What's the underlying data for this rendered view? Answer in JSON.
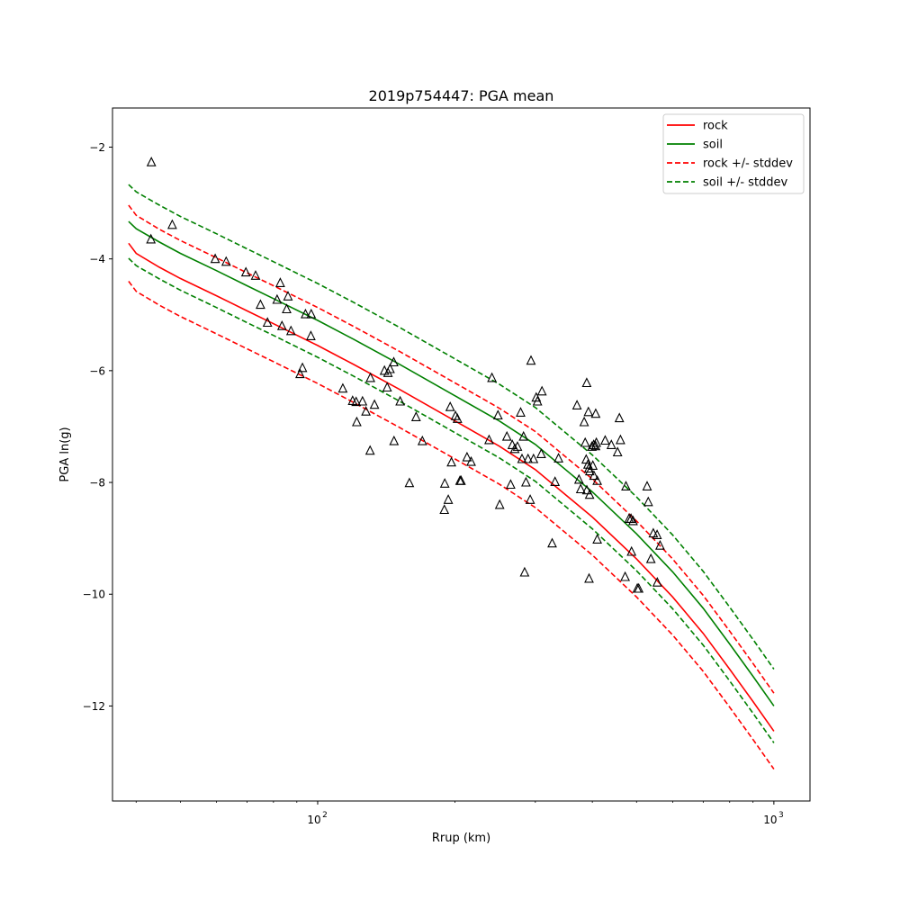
{
  "chart_data": {
    "type": "line",
    "title": "2019p754447: PGA mean",
    "xlabel": "Rrup (km)",
    "ylabel": "PGA ln(g)",
    "xscale": "log",
    "xlim": [
      35.5,
      1200
    ],
    "ylim": [
      -13.7,
      -1.3
    ],
    "x_ticks": [
      100,
      1000
    ],
    "x_tick_labels": [
      [
        "10",
        "2"
      ],
      [
        "10",
        "3"
      ]
    ],
    "y_ticks": [
      -12,
      -10,
      -8,
      -6,
      -4,
      -2
    ],
    "y_tick_labels": [
      "−12",
      "−10",
      "−8",
      "−6",
      "−4",
      "−2"
    ],
    "grid": false,
    "legend": {
      "placement": "top-right"
    },
    "colors": {
      "rock": "#ff0000",
      "soil": "#008000",
      "observed": "#000000"
    },
    "series": [
      {
        "name": "rock",
        "color": "#ff0000",
        "dashed": false,
        "x": [
          38.5,
          40,
          45,
          50,
          60,
          70,
          80,
          100,
          120,
          150,
          200,
          250,
          300,
          400,
          500,
          600,
          700,
          800,
          900,
          1000
        ],
        "y": [
          -3.72,
          -3.9,
          -4.15,
          -4.35,
          -4.66,
          -4.93,
          -5.16,
          -5.55,
          -5.89,
          -6.32,
          -6.9,
          -7.35,
          -7.77,
          -8.62,
          -9.37,
          -10.05,
          -10.7,
          -11.34,
          -11.92,
          -12.45
        ]
      },
      {
        "name": "soil",
        "color": "#008000",
        "dashed": false,
        "x": [
          38.5,
          40,
          45,
          50,
          60,
          70,
          80,
          100,
          120,
          150,
          200,
          250,
          300,
          400,
          500,
          600,
          700,
          800,
          900,
          1000
        ],
        "y": [
          -3.33,
          -3.46,
          -3.7,
          -3.9,
          -4.21,
          -4.48,
          -4.71,
          -5.1,
          -5.44,
          -5.87,
          -6.45,
          -6.9,
          -7.32,
          -8.17,
          -8.92,
          -9.6,
          -10.25,
          -10.89,
          -11.47,
          -12.0
        ]
      },
      {
        "name": "rock +/- stddev",
        "color": "#ff0000",
        "dashed": true,
        "x": [
          38.5,
          40,
          45,
          50,
          60,
          70,
          80,
          100,
          120,
          150,
          200,
          250,
          300,
          400,
          500,
          600,
          700,
          800,
          900,
          1000
        ],
        "y": [
          -3.04,
          -3.22,
          -3.47,
          -3.67,
          -3.98,
          -4.25,
          -4.48,
          -4.87,
          -5.21,
          -5.64,
          -6.22,
          -6.67,
          -7.09,
          -7.94,
          -8.69,
          -9.37,
          -10.02,
          -10.66,
          -11.24,
          -11.77
        ]
      },
      {
        "name": "",
        "color": "#ff0000",
        "dashed": true,
        "x": [
          38.5,
          40,
          45,
          50,
          60,
          70,
          80,
          100,
          120,
          150,
          200,
          250,
          300,
          400,
          500,
          600,
          700,
          800,
          900,
          1000
        ],
        "y": [
          -4.4,
          -4.58,
          -4.83,
          -5.03,
          -5.34,
          -5.61,
          -5.84,
          -6.23,
          -6.57,
          -7.0,
          -7.58,
          -8.03,
          -8.45,
          -9.3,
          -10.05,
          -10.73,
          -11.38,
          -12.02,
          -12.6,
          -13.13
        ]
      },
      {
        "name": "soil +/- stddev",
        "color": "#008000",
        "dashed": true,
        "x": [
          38.5,
          40,
          45,
          50,
          60,
          70,
          80,
          100,
          120,
          150,
          200,
          250,
          300,
          400,
          500,
          600,
          700,
          800,
          900,
          1000
        ],
        "y": [
          -2.67,
          -2.8,
          -3.04,
          -3.24,
          -3.55,
          -3.82,
          -4.05,
          -4.44,
          -4.78,
          -5.21,
          -5.79,
          -6.24,
          -6.66,
          -7.51,
          -8.26,
          -8.94,
          -9.59,
          -10.23,
          -10.81,
          -11.34
        ]
      },
      {
        "name": "",
        "color": "#008000",
        "dashed": true,
        "x": [
          38.5,
          40,
          45,
          50,
          60,
          70,
          80,
          100,
          120,
          150,
          200,
          250,
          300,
          400,
          500,
          600,
          700,
          800,
          900,
          1000
        ],
        "y": [
          -3.99,
          -4.12,
          -4.36,
          -4.56,
          -4.87,
          -5.14,
          -5.37,
          -5.76,
          -6.1,
          -6.53,
          -7.11,
          -7.56,
          -7.98,
          -8.83,
          -9.58,
          -10.26,
          -10.91,
          -11.55,
          -12.13,
          -12.66
        ]
      }
    ],
    "observed": {
      "marker": "open-triangle",
      "x": [
        43.1,
        43.2,
        48.0,
        59.6,
        63.0,
        69.6,
        73.1,
        74.9,
        77.6,
        81.5,
        82.8,
        83.5,
        85.5,
        86.1,
        87.4,
        91.5,
        92.6,
        94.0,
        96.6,
        96.8,
        113.5,
        119.3,
        121.4,
        121.8,
        125.4,
        127.6,
        130.3,
        130.5,
        133.2,
        140.1,
        142.0,
        142.6,
        144.1,
        146.8,
        147.0,
        151.6,
        158.9,
        164.3,
        169.6,
        189.5,
        189.9,
        193.3,
        195.2,
        196.4,
        200.5,
        202.5,
        205.1,
        206.2,
        212.5,
        217.0,
        237.5,
        241.0,
        248.4,
        250.6,
        259.9,
        264.8,
        267.0,
        270.4,
        274.1,
        278.5,
        280.4,
        282.6,
        284.2,
        286.1,
        289.1,
        292.3,
        293.5,
        297.3,
        301.3,
        303.3,
        309.1,
        310.2,
        326.5,
        331.4,
        337.2,
        370.2,
        373.9,
        377.2,
        383.8,
        385.8,
        387.7,
        388.8,
        388.9,
        391.2,
        392.2,
        393.0,
        393.4,
        394.5,
        394.9,
        399.1,
        401.0,
        402.6,
        403.2,
        406.7,
        406.8,
        408.2,
        410.1,
        410.1,
        426.8,
        440.3,
        454.4,
        458.4,
        461.1,
        472.1,
        473.9,
        481.6,
        486.1,
        487.4,
        491.3,
        501.9,
        505.6,
        527.3,
        530.5,
        537.6,
        544.2,
        554.5,
        555.0,
        563.0
      ],
      "y": [
        -3.65,
        -2.27,
        -3.39,
        -4.0,
        -4.05,
        -4.24,
        -4.3,
        -4.82,
        -5.14,
        -4.73,
        -4.43,
        -5.2,
        -4.9,
        -4.67,
        -5.29,
        -6.06,
        -5.95,
        -4.99,
        -5.38,
        -4.99,
        -6.32,
        -6.54,
        -6.56,
        -6.92,
        -6.55,
        -6.73,
        -7.43,
        -6.13,
        -6.61,
        -6.0,
        -6.3,
        -6.04,
        -5.97,
        -5.85,
        -7.26,
        -6.55,
        -8.01,
        -6.83,
        -7.26,
        -8.49,
        -8.02,
        -8.31,
        -6.65,
        -7.64,
        -6.81,
        -6.86,
        -7.97,
        -7.97,
        -7.55,
        -7.63,
        -7.24,
        -6.13,
        -6.8,
        -8.4,
        -7.18,
        -8.04,
        -7.33,
        -7.4,
        -7.36,
        -6.75,
        -7.58,
        -7.18,
        -9.61,
        -8.0,
        -7.58,
        -8.31,
        -5.82,
        -7.58,
        -6.48,
        -6.55,
        -7.49,
        -6.37,
        -9.09,
        -7.99,
        -7.57,
        -6.62,
        -7.95,
        -8.12,
        -6.92,
        -7.29,
        -7.59,
        -6.22,
        -8.14,
        -7.68,
        -6.74,
        -7.75,
        -9.72,
        -8.22,
        -7.8,
        -7.36,
        -7.7,
        -7.33,
        -7.88,
        -7.35,
        -6.77,
        -7.29,
        -7.97,
        -9.02,
        -7.25,
        -7.33,
        -7.46,
        -6.85,
        -7.24,
        -9.69,
        -8.07,
        -8.65,
        -8.65,
        -9.24,
        -8.69,
        -9.9,
        -9.9,
        -8.07,
        -8.35,
        -9.37,
        -8.91,
        -8.94,
        -9.79,
        -9.13
      ]
    }
  }
}
